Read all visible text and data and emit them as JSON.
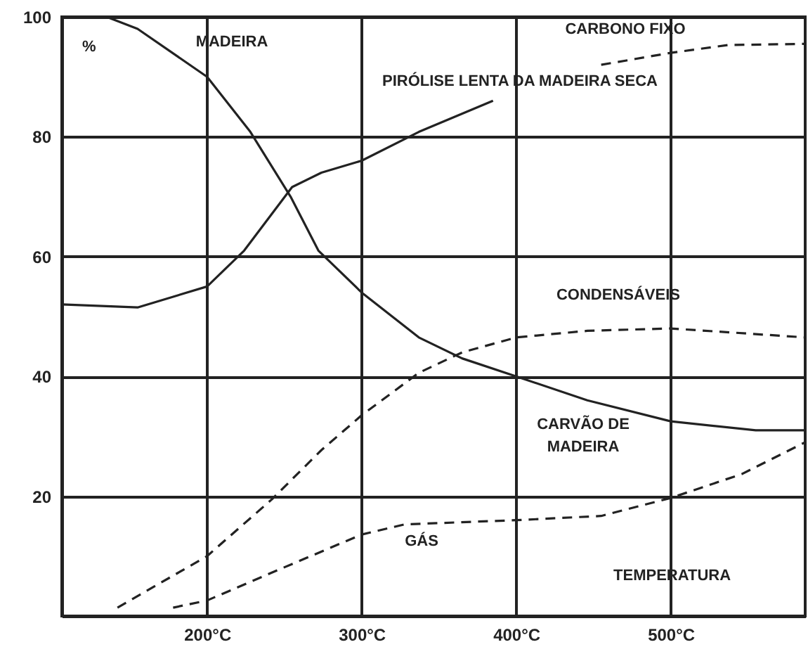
{
  "chart_data": {
    "type": "line",
    "xlabel": "TEMPERATURA",
    "ylabel": "%",
    "xlim": [
      106,
      587
    ],
    "ylim": [
      0,
      100
    ],
    "xticks": [
      {
        "value": 200,
        "label": "200°C"
      },
      {
        "value": 300,
        "label": "300°C"
      },
      {
        "value": 400,
        "label": "400°C"
      },
      {
        "value": 500,
        "label": "500°C"
      }
    ],
    "yticks": [
      20,
      40,
      60,
      80,
      100
    ],
    "grid": true,
    "marker": "none",
    "series": [
      {
        "color": "#222222",
        "line_style": "solid",
        "x": [
          135,
          155,
          200,
          228,
          254,
          272,
          300,
          337,
          365,
          400,
          446,
          500,
          555,
          587
        ],
        "values": [
          100,
          98,
          90,
          80.8,
          70,
          61,
          54,
          46.5,
          43,
          40,
          36,
          32.5,
          31,
          31
        ]
      },
      {
        "color": "#222222",
        "line_style": "solid",
        "x": [
          106,
          155,
          200,
          224,
          255,
          274,
          300,
          337,
          385
        ],
        "values": [
          52,
          51.5,
          55,
          61,
          71.6,
          74,
          76,
          80.8,
          86
        ]
      },
      {
        "color": "#222222",
        "line_style": "dashed",
        "x": [
          455,
          500,
          537,
          587
        ],
        "values": [
          92,
          94,
          95.3,
          95.5
        ]
      },
      {
        "color": "#222222",
        "line_style": "dashed",
        "x": [
          142,
          200,
          242,
          274,
          300,
          337,
          365,
          400,
          446,
          500,
          587
        ],
        "values": [
          1.4,
          10,
          19.5,
          27.7,
          33.5,
          40.6,
          44,
          46.5,
          47.6,
          48,
          46.5
        ]
      },
      {
        "color": "#222222",
        "line_style": "dashed",
        "x": [
          178,
          200,
          246,
          300,
          328,
          400,
          455,
          500,
          546,
          587
        ],
        "values": [
          1.4,
          2.6,
          7.7,
          13.6,
          15.3,
          16,
          16.7,
          19.7,
          23.7,
          29
        ]
      }
    ],
    "annotations": [
      "MADEIRA",
      "PIRÓLISE LENTA DA MADEIRA SECA",
      "CARBONO FIXO",
      "CONDENSÁVEIS",
      "CARVÃO DE\nMADEIRA",
      "GÁS"
    ]
  }
}
